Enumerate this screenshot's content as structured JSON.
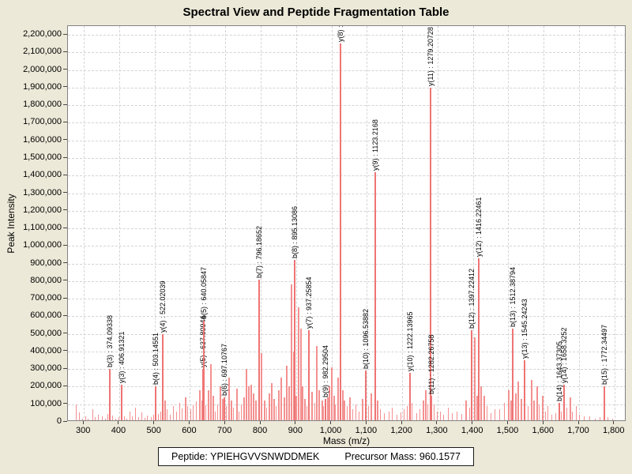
{
  "title": "Spectral View and Peptide Fragmentation Table",
  "axes": {
    "x_label": "Mass (m/z)",
    "y_label": "Peak Intensity",
    "x_tick_min": 300,
    "x_tick_max": 1800,
    "x_tick_step": 100,
    "y_tick_min": 0,
    "y_tick_max": 2200000,
    "y_tick_step": 100000,
    "x_display_min": 255,
    "x_display_max": 1834,
    "y_display_min": 0,
    "y_display_max": 2250000
  },
  "footer": {
    "peptide_text": "Peptide: YPIEHGVVSNWDDMEK",
    "precursor_text": "Precursor Mass: 960.1577"
  },
  "colors": {
    "background": "#ECE9D8",
    "plot_background": "#FFFFFF",
    "peak_labeled": "#EF7474",
    "peak_noise": "#F49090",
    "grid": "#D4D4D4",
    "plot_border": "#848284",
    "text": "#000000"
  },
  "chart_data": {
    "type": "bar",
    "subtype": "mass-spectrum-stick-plot",
    "title": "Spectral View and Peptide Fragmentation Table",
    "xlabel": "Mass (m/z)",
    "ylabel": "Peak Intensity",
    "xlim": [
      255,
      1834
    ],
    "ylim": [
      0,
      2250000
    ],
    "grid": true,
    "labeled_peaks": [
      {
        "ion": "b(3)",
        "mz": 374.09338,
        "intensity": 300000,
        "label": "b(3) : 374.09338"
      },
      {
        "ion": "y(3)",
        "mz": 406.91321,
        "intensity": 210000,
        "label": "y(3) : 406.91321"
      },
      {
        "ion": "b(4)",
        "mz": 503.14551,
        "intensity": 200000,
        "label": "b(4) : 503.14551"
      },
      {
        "ion": "y(4)",
        "mz": 522.02039,
        "intensity": 500000,
        "label": "y(4) : 522.02039"
      },
      {
        "ion": "y(5)",
        "mz": 637.80944,
        "intensity": 300000,
        "label": "y(5) : 637.80944"
      },
      {
        "ion": "b(5)",
        "mz": 640.05847,
        "intensity": 575000,
        "label": "b(5) : 640.05847"
      },
      {
        "ion": "b(6)",
        "mz": 697.10767,
        "intensity": 140000,
        "label": "b(6) : 697.10767"
      },
      {
        "ion": "b(7)",
        "mz": 796.18652,
        "intensity": 810000,
        "label": "b(7) : 796.18652"
      },
      {
        "ion": "b(8)",
        "mz": 895.13086,
        "intensity": 920000,
        "label": "b(8) : 895.13086"
      },
      {
        "ion": "y(7)",
        "mz": 937.25854,
        "intensity": 520000,
        "label": "y(7) : 937.25854"
      },
      {
        "ion": "b(9)",
        "mz": 982.29504,
        "intensity": 130000,
        "label": "b(9) : 982.29504"
      },
      {
        "ion": "y(8)",
        "mz": 1025.0,
        "intensity": 2150000,
        "label": "y(8) :"
      },
      {
        "ion": "b(10)",
        "mz": 1096.53882,
        "intensity": 290000,
        "label": "b(10) : 1096.53882"
      },
      {
        "ion": "y(9)",
        "mz": 1123.2168,
        "intensity": 1420000,
        "label": "y(9) : 1123.2168"
      },
      {
        "ion": "y(10)",
        "mz": 1222.13965,
        "intensity": 280000,
        "label": "y(10) : 1222.13965"
      },
      {
        "ion": "y(11)",
        "mz": 1279.20728,
        "intensity": 1900000,
        "label": "y(11) : 1279.20728"
      },
      {
        "ion": "b(11)",
        "mz": 1282.26758,
        "intensity": 150000,
        "label": "b(11) : 1282.26758"
      },
      {
        "ion": "b(12)",
        "mz": 1397.22412,
        "intensity": 520000,
        "label": "b(12) : 1397.22412"
      },
      {
        "ion": "y(12)",
        "mz": 1416.22461,
        "intensity": 930000,
        "label": "y(12) : 1416.22461"
      },
      {
        "ion": "b(13)",
        "mz": 1512.38794,
        "intensity": 530000,
        "label": "b(13) : 1512.38794"
      },
      {
        "ion": "y(13)",
        "mz": 1545.24243,
        "intensity": 350000,
        "label": "y(13) : 1545.24243"
      },
      {
        "ion": "b(14)",
        "mz": 1643.37305,
        "intensity": 110000,
        "label": "b(14) : 1643.37305"
      },
      {
        "ion": "y(14)",
        "mz": 1658.3252,
        "intensity": 210000,
        "label": "y(14) : 1658.3252"
      },
      {
        "ion": "b(15)",
        "mz": 1772.34497,
        "intensity": 200000,
        "label": "b(15) : 1772.34497"
      }
    ],
    "noise_peaks": [
      [
        278,
        100000
      ],
      [
        288,
        55000
      ],
      [
        296,
        20000
      ],
      [
        305,
        30000
      ],
      [
        313,
        18000
      ],
      [
        325,
        72000
      ],
      [
        333,
        25000
      ],
      [
        341,
        40000
      ],
      [
        352,
        30000
      ],
      [
        360,
        18000
      ],
      [
        368,
        45000
      ],
      [
        381,
        35000
      ],
      [
        390,
        20000
      ],
      [
        398,
        28000
      ],
      [
        414,
        30000
      ],
      [
        422,
        20000
      ],
      [
        430,
        60000
      ],
      [
        438,
        30000
      ],
      [
        447,
        80000
      ],
      [
        455,
        28000
      ],
      [
        463,
        55000
      ],
      [
        472,
        22000
      ],
      [
        480,
        35000
      ],
      [
        490,
        25000
      ],
      [
        498,
        40000
      ],
      [
        510,
        45000
      ],
      [
        518,
        60000
      ],
      [
        528,
        120000
      ],
      [
        536,
        70000
      ],
      [
        545,
        40000
      ],
      [
        553,
        90000
      ],
      [
        561,
        60000
      ],
      [
        570,
        110000
      ],
      [
        578,
        75000
      ],
      [
        586,
        140000
      ],
      [
        594,
        90000
      ],
      [
        602,
        70000
      ],
      [
        610,
        95000
      ],
      [
        618,
        115000
      ],
      [
        626,
        180000
      ],
      [
        633,
        120000
      ],
      [
        645,
        95000
      ],
      [
        652,
        180000
      ],
      [
        658,
        330000
      ],
      [
        665,
        150000
      ],
      [
        671,
        60000
      ],
      [
        678,
        100000
      ],
      [
        685,
        200000
      ],
      [
        691,
        130000
      ],
      [
        703,
        90000
      ],
      [
        710,
        250000
      ],
      [
        717,
        120000
      ],
      [
        724,
        80000
      ],
      [
        731,
        190000
      ],
      [
        738,
        60000
      ],
      [
        745,
        100000
      ],
      [
        752,
        140000
      ],
      [
        758,
        300000
      ],
      [
        765,
        200000
      ],
      [
        772,
        210000
      ],
      [
        779,
        160000
      ],
      [
        786,
        120000
      ],
      [
        802,
        390000
      ],
      [
        809,
        120000
      ],
      [
        816,
        80000
      ],
      [
        823,
        160000
      ],
      [
        830,
        220000
      ],
      [
        837,
        130000
      ],
      [
        844,
        90000
      ],
      [
        851,
        180000
      ],
      [
        858,
        250000
      ],
      [
        865,
        140000
      ],
      [
        872,
        320000
      ],
      [
        880,
        200000
      ],
      [
        887,
        780000
      ],
      [
        893,
        400000
      ],
      [
        900,
        150000
      ],
      [
        905,
        650000
      ],
      [
        912,
        530000
      ],
      [
        918,
        200000
      ],
      [
        925,
        130000
      ],
      [
        931,
        90000
      ],
      [
        945,
        170000
      ],
      [
        952,
        110000
      ],
      [
        958,
        430000
      ],
      [
        965,
        180000
      ],
      [
        972,
        120000
      ],
      [
        978,
        90000
      ],
      [
        988,
        140000
      ],
      [
        994,
        200000
      ],
      [
        1000,
        310000
      ],
      [
        1006,
        150000
      ],
      [
        1012,
        100000
      ],
      [
        1018,
        250000
      ],
      [
        1030,
        180000
      ],
      [
        1036,
        120000
      ],
      [
        1045,
        90000
      ],
      [
        1052,
        140000
      ],
      [
        1060,
        70000
      ],
      [
        1068,
        100000
      ],
      [
        1078,
        60000
      ],
      [
        1088,
        130000
      ],
      [
        1105,
        90000
      ],
      [
        1112,
        160000
      ],
      [
        1130,
        120000
      ],
      [
        1138,
        70000
      ],
      [
        1150,
        50000
      ],
      [
        1162,
        60000
      ],
      [
        1172,
        80000
      ],
      [
        1185,
        40000
      ],
      [
        1196,
        55000
      ],
      [
        1205,
        70000
      ],
      [
        1215,
        90000
      ],
      [
        1228,
        110000
      ],
      [
        1240,
        50000
      ],
      [
        1250,
        70000
      ],
      [
        1258,
        120000
      ],
      [
        1266,
        180000
      ],
      [
        1273,
        100000
      ],
      [
        1290,
        100000
      ],
      [
        1298,
        60000
      ],
      [
        1308,
        60000
      ],
      [
        1318,
        40000
      ],
      [
        1330,
        80000
      ],
      [
        1342,
        50000
      ],
      [
        1355,
        60000
      ],
      [
        1368,
        45000
      ],
      [
        1380,
        120000
      ],
      [
        1390,
        80000
      ],
      [
        1403,
        480000
      ],
      [
        1410,
        150000
      ],
      [
        1422,
        200000
      ],
      [
        1430,
        150000
      ],
      [
        1440,
        90000
      ],
      [
        1452,
        50000
      ],
      [
        1463,
        70000
      ],
      [
        1475,
        70000
      ],
      [
        1488,
        110000
      ],
      [
        1500,
        180000
      ],
      [
        1507,
        120000
      ],
      [
        1520,
        160000
      ],
      [
        1527,
        230000
      ],
      [
        1535,
        130000
      ],
      [
        1548,
        90000
      ],
      [
        1556,
        90000
      ],
      [
        1565,
        240000
      ],
      [
        1572,
        120000
      ],
      [
        1580,
        200000
      ],
      [
        1588,
        100000
      ],
      [
        1596,
        150000
      ],
      [
        1604,
        60000
      ],
      [
        1612,
        90000
      ],
      [
        1622,
        40000
      ],
      [
        1635,
        50000
      ],
      [
        1650,
        60000
      ],
      [
        1666,
        80000
      ],
      [
        1674,
        140000
      ],
      [
        1682,
        60000
      ],
      [
        1692,
        90000
      ],
      [
        1702,
        40000
      ],
      [
        1715,
        30000
      ],
      [
        1730,
        30000
      ],
      [
        1745,
        20000
      ],
      [
        1760,
        25000
      ],
      [
        1782,
        25000
      ],
      [
        1795,
        20000
      ]
    ]
  }
}
